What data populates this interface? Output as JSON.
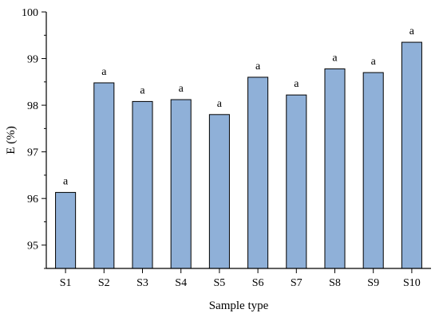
{
  "chart_data": {
    "type": "bar",
    "title": "",
    "xlabel": "Sample type",
    "ylabel": "E (%)",
    "categories": [
      "S1",
      "S2",
      "S3",
      "S4",
      "S5",
      "S6",
      "S7",
      "S8",
      "S9",
      "S10"
    ],
    "values": [
      96.13,
      98.48,
      98.08,
      98.12,
      97.8,
      98.6,
      98.22,
      98.78,
      98.7,
      99.35
    ],
    "significance_labels": [
      "a",
      "a",
      "a",
      "a",
      "a",
      "a",
      "a",
      "a",
      "a",
      "a"
    ],
    "ylim": [
      94.5,
      100
    ],
    "yticks": [
      95,
      96,
      97,
      98,
      99,
      100
    ],
    "grid": false,
    "colors": {
      "bar_fill": "#8FB0D8",
      "bar_stroke": "#000000",
      "axis": "#000000"
    }
  }
}
